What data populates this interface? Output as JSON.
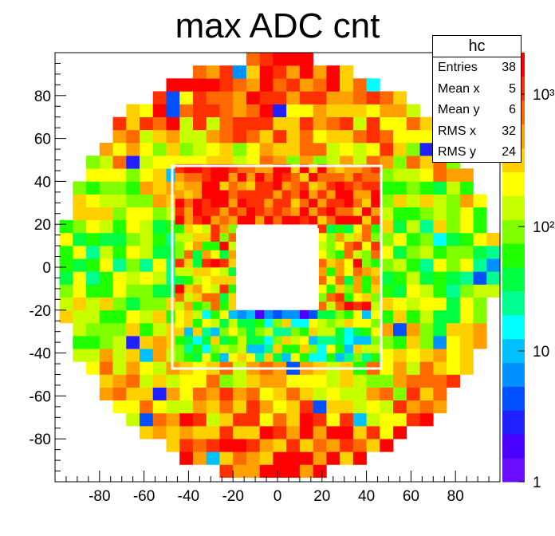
{
  "title": "max ADC cnt",
  "stats": {
    "name": "hc",
    "rows": [
      {
        "label": "Entries",
        "value": "38"
      },
      {
        "label": "Mean x",
        "value": "5"
      },
      {
        "label": "Mean y",
        "value": "6"
      },
      {
        "label": "RMS x",
        "value": "32"
      },
      {
        "label": "RMS y",
        "value": "24"
      }
    ]
  },
  "palette": [
    "#6a0dff",
    "#4a00ff",
    "#1f1fff",
    "#0050ff",
    "#0090ff",
    "#00c0ff",
    "#00ffff",
    "#00ff90",
    "#00ff40",
    "#20ff00",
    "#7fff00",
    "#c8ff00",
    "#ffff00",
    "#ffd000",
    "#ff9f00",
    "#ff6a00",
    "#ff3000",
    "#ff0000"
  ],
  "chart_data": {
    "type": "heatmap",
    "title": "max ADC cnt",
    "xlim": [
      -100,
      100
    ],
    "ylim": [
      -100,
      100
    ],
    "x_ticks": [
      -80,
      -60,
      -40,
      -20,
      0,
      20,
      40,
      60,
      80
    ],
    "y_ticks": [
      -80,
      -60,
      -40,
      -20,
      0,
      20,
      40,
      60,
      80
    ],
    "z_scale": "log",
    "z_ticks": [
      "1",
      "10",
      "10²",
      "10³"
    ],
    "grid": false,
    "legend": "top-right",
    "regions": [
      {
        "name": "outer",
        "x_range": [
          -98,
          98
        ],
        "y_range": [
          -98,
          98
        ],
        "cell": 6,
        "typical_z": "10²–10³",
        "boundary": "circle r≈98"
      },
      {
        "name": "inner",
        "x_range": [
          -46,
          46
        ],
        "y_range": [
          -44,
          46
        ],
        "cell": 4,
        "typical_z": "10–10³"
      },
      {
        "name": "hole",
        "x_range": [
          -20,
          20
        ],
        "y_range": [
          -20,
          20
        ],
        "z": null
      }
    ],
    "notes": "Outer region mostly red/orange near top and bottom, green/yellow on the sides; inner region mixed with cyan/blue cells at lower edge of hole."
  }
}
